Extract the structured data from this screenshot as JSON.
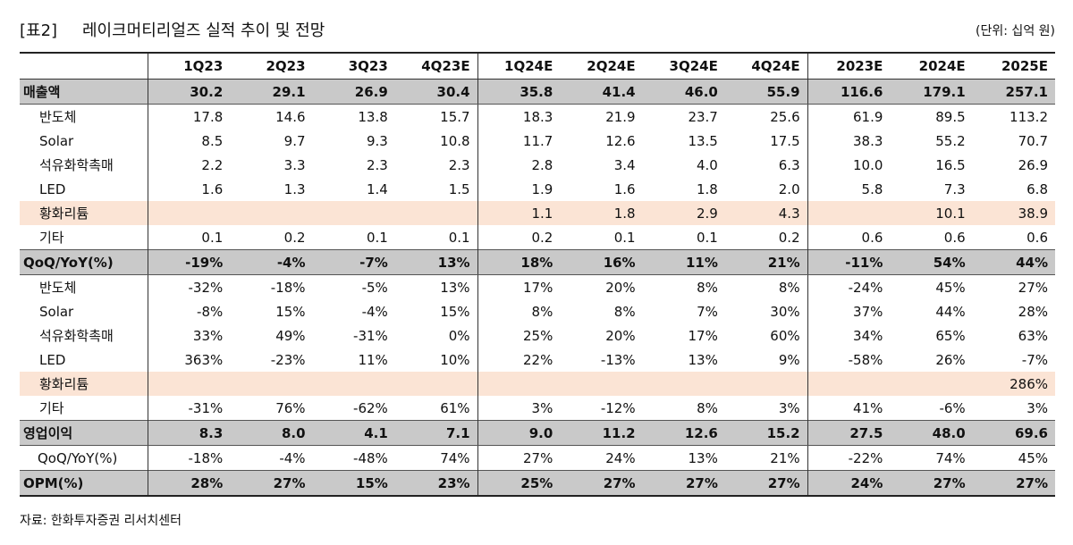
{
  "header": {
    "tag": "[표2]",
    "title": "레이크머티리얼즈 실적 추이 및 전망",
    "unit": "(단위: 십억 원)"
  },
  "table": {
    "columns": [
      "1Q23",
      "2Q23",
      "3Q23",
      "4Q23E",
      "1Q24E",
      "2Q24E",
      "3Q24E",
      "4Q24E",
      "2023E",
      "2024E",
      "2025E"
    ],
    "rows": [
      {
        "label": "매출액",
        "cells": [
          "30.2",
          "29.1",
          "26.9",
          "30.4",
          "35.8",
          "41.4",
          "46.0",
          "55.9",
          "116.6",
          "179.1",
          "257.1"
        ]
      },
      {
        "label": "반도체",
        "cells": [
          "17.8",
          "14.6",
          "13.8",
          "15.7",
          "18.3",
          "21.9",
          "23.7",
          "25.6",
          "61.9",
          "89.5",
          "113.2"
        ]
      },
      {
        "label": "Solar",
        "cells": [
          "8.5",
          "9.7",
          "9.3",
          "10.8",
          "11.7",
          "12.6",
          "13.5",
          "17.5",
          "38.3",
          "55.2",
          "70.7"
        ]
      },
      {
        "label": "석유화학촉매",
        "cells": [
          "2.2",
          "3.3",
          "2.3",
          "2.3",
          "2.8",
          "3.4",
          "4.0",
          "6.3",
          "10.0",
          "16.5",
          "26.9"
        ]
      },
      {
        "label": "LED",
        "cells": [
          "1.6",
          "1.3",
          "1.4",
          "1.5",
          "1.9",
          "1.6",
          "1.8",
          "2.0",
          "5.8",
          "7.3",
          "6.8"
        ]
      },
      {
        "label": "황화리튬",
        "cells": [
          null,
          null,
          null,
          null,
          "1.1",
          "1.8",
          "2.9",
          "4.3",
          null,
          "10.1",
          "38.9"
        ]
      },
      {
        "label": "기타",
        "cells": [
          "0.1",
          "0.2",
          "0.1",
          "0.1",
          "0.2",
          "0.1",
          "0.1",
          "0.2",
          "0.6",
          "0.6",
          "0.6"
        ]
      },
      {
        "label": "QoQ/YoY(%)",
        "cells": [
          "-19%",
          "-4%",
          "-7%",
          "13%",
          "18%",
          "16%",
          "11%",
          "21%",
          "-11%",
          "54%",
          "44%"
        ]
      },
      {
        "label": "반도체",
        "cells": [
          "-32%",
          "-18%",
          "-5%",
          "13%",
          "17%",
          "20%",
          "8%",
          "8%",
          "-24%",
          "45%",
          "27%"
        ]
      },
      {
        "label": "Solar",
        "cells": [
          "-8%",
          "15%",
          "-4%",
          "15%",
          "8%",
          "8%",
          "7%",
          "30%",
          "37%",
          "44%",
          "28%"
        ]
      },
      {
        "label": "석유화학촉매",
        "cells": [
          "33%",
          "49%",
          "-31%",
          "0%",
          "25%",
          "20%",
          "17%",
          "60%",
          "34%",
          "65%",
          "63%"
        ]
      },
      {
        "label": "LED",
        "cells": [
          "363%",
          "-23%",
          "11%",
          "10%",
          "22%",
          "-13%",
          "13%",
          "9%",
          "-58%",
          "26%",
          "-7%"
        ]
      },
      {
        "label": "황화리튬",
        "cells": [
          null,
          null,
          null,
          null,
          null,
          null,
          null,
          null,
          null,
          null,
          "286%"
        ]
      },
      {
        "label": "기타",
        "cells": [
          "-31%",
          "76%",
          "-62%",
          "61%",
          "3%",
          "-12%",
          "8%",
          "3%",
          "41%",
          "-6%",
          "3%"
        ]
      },
      {
        "label": "영업이익",
        "cells": [
          "8.3",
          "8.0",
          "4.1",
          "7.1",
          "9.0",
          "11.2",
          "12.6",
          "15.2",
          "27.5",
          "48.0",
          "69.6"
        ]
      },
      {
        "label": "QoQ/YoY(%)",
        "cells": [
          "-18%",
          "-4%",
          "-48%",
          "74%",
          "27%",
          "24%",
          "13%",
          "21%",
          "-22%",
          "74%",
          "45%"
        ]
      },
      {
        "label": "OPM(%)",
        "cells": [
          "28%",
          "27%",
          "15%",
          "23%",
          "25%",
          "27%",
          "27%",
          "27%",
          "24%",
          "27%",
          "27%"
        ]
      }
    ]
  },
  "source": "자료: 한화투자증권 리서치센터"
}
